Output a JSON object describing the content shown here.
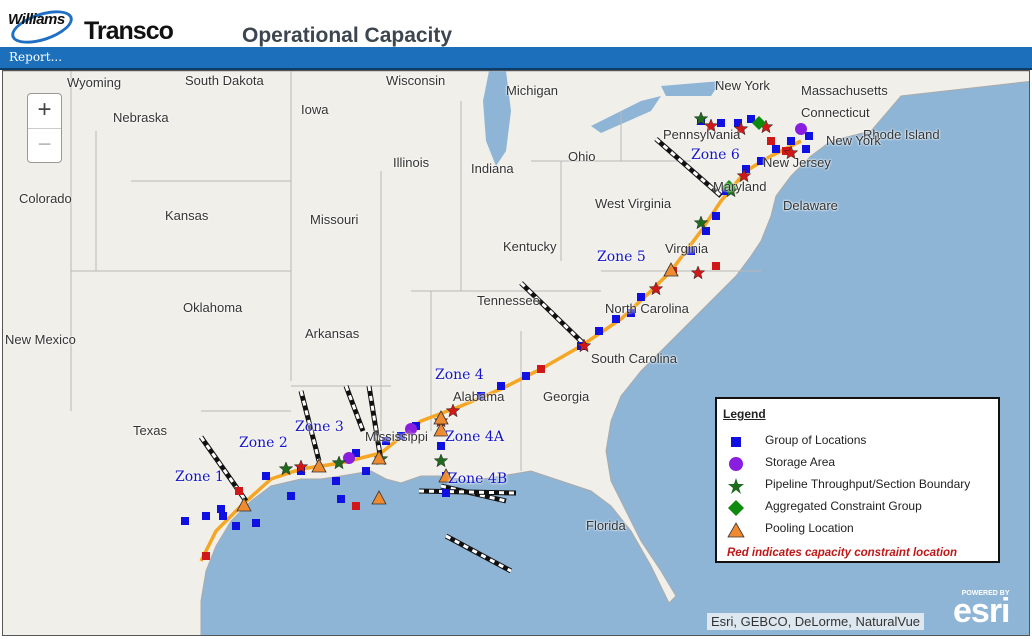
{
  "header": {
    "logo_text": "Williams",
    "brand": "Transco",
    "title": "Operational Capacity"
  },
  "menu": {
    "report": "Report..."
  },
  "map": {
    "states": [
      {
        "name": "South Dakota"
      },
      {
        "name": "Wisconsin"
      },
      {
        "name": "Michigan"
      },
      {
        "name": "New York"
      },
      {
        "name": "Massachusetts"
      },
      {
        "name": "Wyoming"
      },
      {
        "name": "Nebraska"
      },
      {
        "name": "Iowa"
      },
      {
        "name": "Connecticut"
      },
      {
        "name": "Rhode Island"
      },
      {
        "name": "Pennsylvania"
      },
      {
        "name": "New York"
      },
      {
        "name": "Illinois"
      },
      {
        "name": "Indiana"
      },
      {
        "name": "Ohio"
      },
      {
        "name": "New Jersey"
      },
      {
        "name": "Colorado"
      },
      {
        "name": "Kansas"
      },
      {
        "name": "Missouri"
      },
      {
        "name": "West Virginia"
      },
      {
        "name": "Maryland"
      },
      {
        "name": "Delaware"
      },
      {
        "name": "Kentucky"
      },
      {
        "name": "Virginia"
      },
      {
        "name": "Oklahoma"
      },
      {
        "name": "Tennessee"
      },
      {
        "name": "North Carolina"
      },
      {
        "name": "New Mexico"
      },
      {
        "name": "Arkansas"
      },
      {
        "name": "South Carolina"
      },
      {
        "name": "Alabama"
      },
      {
        "name": "Georgia"
      },
      {
        "name": "Mississippi"
      },
      {
        "name": "Texas"
      },
      {
        "name": "Florida"
      }
    ],
    "zones": [
      "Zone 1",
      "Zone 2",
      "Zone 3",
      "Zone 4",
      "Zone 4A",
      "Zone 4B",
      "Zone 5",
      "Zone 6"
    ],
    "zoom_in": "+",
    "zoom_out": "−",
    "attribution": "Esri, GEBCO, DeLorme, NaturalVue",
    "powered_by": "POWERED BY",
    "esri_logo": "esri"
  },
  "legend": {
    "title": "Legend",
    "items": [
      {
        "label": "Group of Locations",
        "icon": "blue-square",
        "color": "#1010e0"
      },
      {
        "label": "Storage Area",
        "icon": "purple-circle",
        "color": "#8a1ee0"
      },
      {
        "label": "Pipeline Throughput/Section Boundary",
        "icon": "green-star",
        "color": "#1e6b1e"
      },
      {
        "label": "Aggregated Constraint Group",
        "icon": "green-diamond",
        "color": "#0e8a0e"
      },
      {
        "label": "Pooling Location",
        "icon": "orange-triangle",
        "color": "#f08a30"
      }
    ],
    "note": "Red indicates capacity constraint location",
    "constraint_color": "#d01818"
  }
}
